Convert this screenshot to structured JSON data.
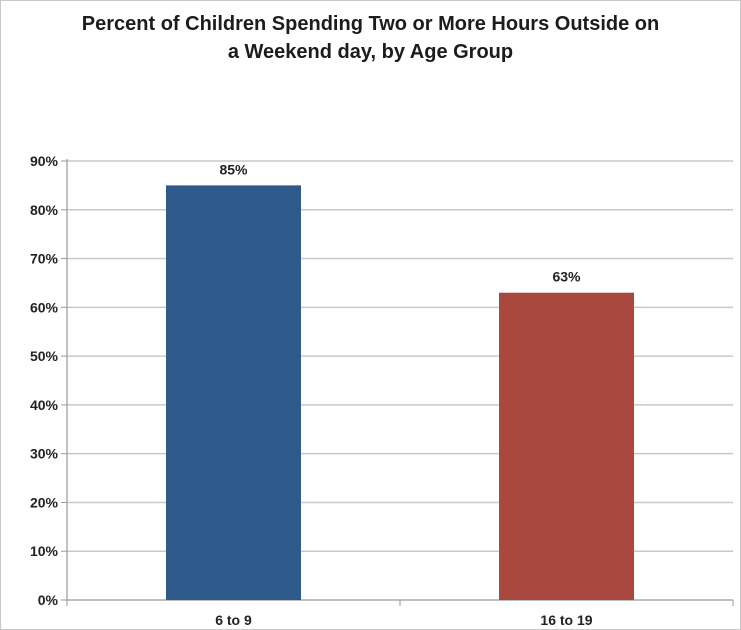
{
  "chart_data": {
    "type": "bar",
    "title_line1": "Percent of Children Spending Two or More Hours Outside on",
    "title_line2": "a Weekend day, by Age Group",
    "categories": [
      "6 to 9",
      "16 to 19"
    ],
    "values": [
      85,
      63
    ],
    "data_labels": [
      "85%",
      "63%"
    ],
    "colors": [
      "#2e5b8c",
      "#a8483f"
    ],
    "ylim": [
      0,
      90
    ],
    "yticks": [
      0,
      10,
      20,
      30,
      40,
      50,
      60,
      70,
      80,
      90
    ],
    "ytick_labels": [
      "0%",
      "10%",
      "20%",
      "30%",
      "40%",
      "50%",
      "60%",
      "70%",
      "80%",
      "90%"
    ],
    "xlabel": "",
    "ylabel": "",
    "grid": true,
    "legend": false
  }
}
